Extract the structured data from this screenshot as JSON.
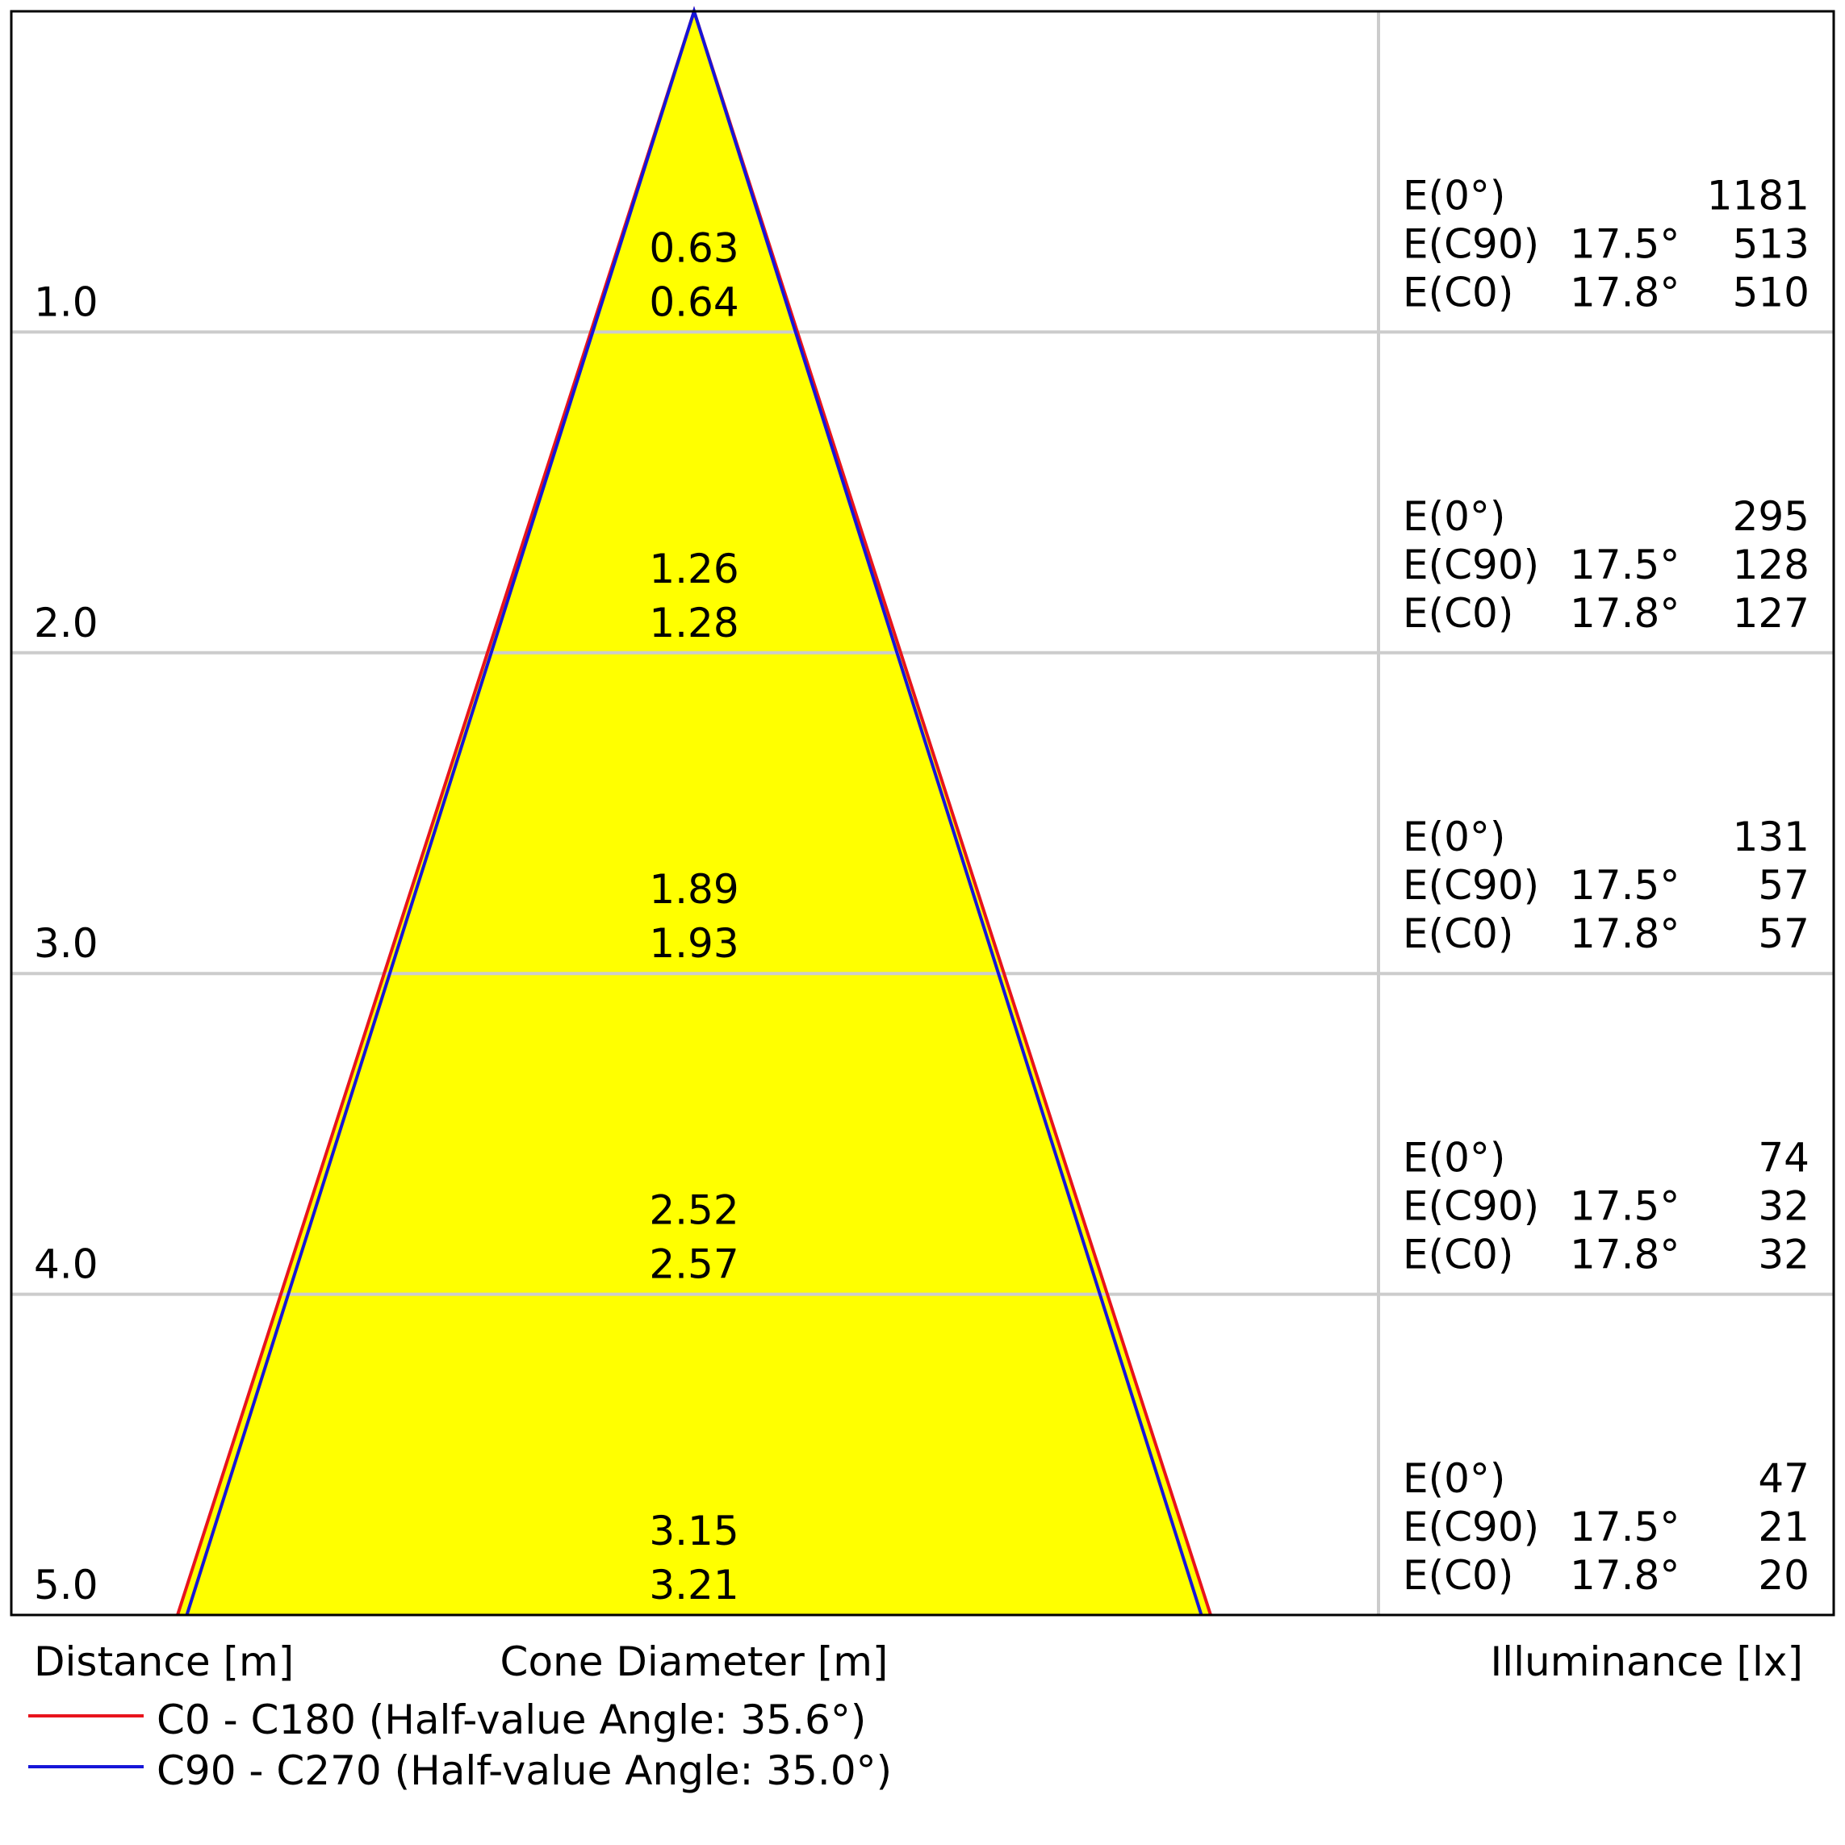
{
  "chart_data": {
    "type": "cone_diagram",
    "rows": [
      {
        "distance": "1.0",
        "diameter_c90": "0.63",
        "diameter_c0": "0.64",
        "e0_label": "E(0°)",
        "e0_value": "1181",
        "ec90_label": "E(C90)",
        "ec90_angle": "17.5°",
        "ec90_value": "513",
        "ec0_label": "E(C0)",
        "ec0_angle": "17.8°",
        "ec0_value": "510"
      },
      {
        "distance": "2.0",
        "diameter_c90": "1.26",
        "diameter_c0": "1.28",
        "e0_label": "E(0°)",
        "e0_value": "295",
        "ec90_label": "E(C90)",
        "ec90_angle": "17.5°",
        "ec90_value": "128",
        "ec0_label": "E(C0)",
        "ec0_angle": "17.8°",
        "ec0_value": "127"
      },
      {
        "distance": "3.0",
        "diameter_c90": "1.89",
        "diameter_c0": "1.93",
        "e0_label": "E(0°)",
        "e0_value": "131",
        "ec90_label": "E(C90)",
        "ec90_angle": "17.5°",
        "ec90_value": "57",
        "ec0_label": "E(C0)",
        "ec0_angle": "17.8°",
        "ec0_value": "57"
      },
      {
        "distance": "4.0",
        "diameter_c90": "2.52",
        "diameter_c0": "2.57",
        "e0_label": "E(0°)",
        "e0_value": "74",
        "ec90_label": "E(C90)",
        "ec90_angle": "17.5°",
        "ec90_value": "32",
        "ec0_label": "E(C0)",
        "ec0_angle": "17.8°",
        "ec0_value": "32"
      },
      {
        "distance": "5.0",
        "diameter_c90": "3.15",
        "diameter_c0": "3.21",
        "e0_label": "E(0°)",
        "e0_value": "47",
        "ec90_label": "E(C90)",
        "ec90_angle": "17.5°",
        "ec90_value": "21",
        "ec0_label": "E(C0)",
        "ec0_angle": "17.8°",
        "ec0_value": "20"
      }
    ],
    "max_distance": 5,
    "half_angles": {
      "c0": 35.6,
      "c90": 35.0
    },
    "axis_labels": {
      "distance": "Distance [m]",
      "diameter": "Cone Diameter [m]",
      "illuminance": "Illuminance [lx]"
    },
    "legend": [
      {
        "label": "C0 - C180 (Half-value Angle: 35.6°)",
        "color": "#e8141c"
      },
      {
        "label": "C90 - C270 (Half-value Angle: 35.0°)",
        "color": "#1616d8"
      }
    ],
    "colors": {
      "cone_fill": "#ffff00",
      "c0_line": "#e8141c",
      "c90_line": "#1616d8",
      "grid": "#cccccc",
      "frame": "#000000"
    }
  }
}
